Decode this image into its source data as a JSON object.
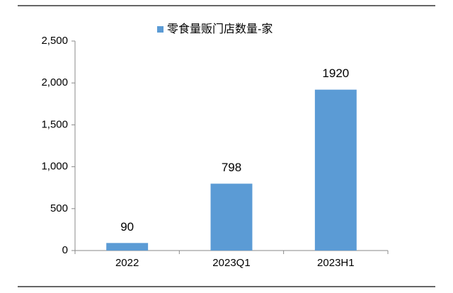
{
  "chart_data": {
    "type": "bar",
    "categories": [
      "2022",
      "2023Q1",
      "2023H1"
    ],
    "series": [
      {
        "name": "零食量贩门店数量-家",
        "color": "#5b9bd5",
        "values": [
          90,
          798,
          1920
        ]
      }
    ],
    "ylim": [
      0,
      2500
    ],
    "yticks": [
      0,
      500,
      {
        "value": 1000,
        "label": "1,000"
      },
      {
        "value": 1500,
        "label": "1,500"
      },
      {
        "value": 2000,
        "label": "2,000"
      },
      {
        "value": 2500,
        "label": "2,500"
      }
    ]
  }
}
